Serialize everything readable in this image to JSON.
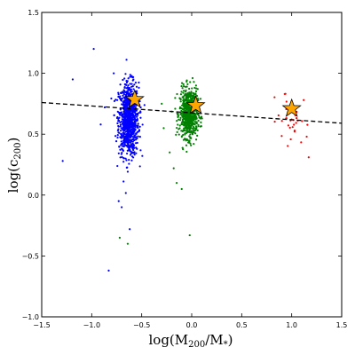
{
  "chart_data": {
    "type": "scatter",
    "xlabel": "log(M200/M*)",
    "xlabel_main": "log(M",
    "xlabel_sub1": "200",
    "xlabel_mid": "/M",
    "xlabel_sub2": "*",
    "xlabel_end": ")",
    "ylabel": "log(c200)",
    "ylabel_main": "log(c",
    "ylabel_sub": "200",
    "ylabel_end": ")",
    "xlim": [
      -1.5,
      1.5
    ],
    "ylim": [
      -1.0,
      1.5
    ],
    "xticks": [
      -1.5,
      -1.0,
      -0.5,
      0.0,
      0.5,
      1.0,
      1.5
    ],
    "yticks": [
      -1.0,
      -0.5,
      0.0,
      0.5,
      1.0,
      1.5
    ],
    "xtick_labels": [
      "−1.5",
      "−1.0",
      "−0.5",
      "0.0",
      "0.5",
      "1.0",
      "1.5"
    ],
    "ytick_labels": [
      "−1.0",
      "−0.5",
      "0.0",
      "0.5",
      "1.0",
      "1.5"
    ],
    "grid": false,
    "series": [
      {
        "color": "#0000ff",
        "cluster": {
          "x_center": -0.63,
          "x_spread": 0.05,
          "y_center": 0.62,
          "y_spread": 0.15,
          "count": 900
        },
        "outliers": [
          [
            -0.98,
            1.2
          ],
          [
            -1.19,
            0.95
          ],
          [
            -1.29,
            0.28
          ],
          [
            -0.83,
            -0.62
          ],
          [
            -0.73,
            -0.05
          ],
          [
            -0.62,
            -0.28
          ],
          [
            -0.91,
            0.58
          ],
          [
            -0.87,
            0.72
          ],
          [
            -0.78,
            1.0
          ],
          [
            -0.7,
            -0.1
          ]
        ]
      },
      {
        "color": "#008000",
        "cluster": {
          "x_center": -0.03,
          "x_spread": 0.045,
          "y_center": 0.67,
          "y_spread": 0.1,
          "count": 700
        },
        "outliers": [
          [
            -0.72,
            -0.35
          ],
          [
            -0.64,
            -0.4
          ],
          [
            -0.28,
            0.55
          ],
          [
            -0.22,
            0.35
          ],
          [
            -0.18,
            0.22
          ],
          [
            -0.1,
            0.05
          ],
          [
            -0.02,
            -0.33
          ],
          [
            -0.3,
            0.75
          ],
          [
            -0.15,
            0.1
          ]
        ]
      },
      {
        "color": "#ff0000",
        "cluster": {
          "x_center": 1.0,
          "x_spread": 0.07,
          "y_center": 0.62,
          "y_spread": 0.1,
          "count": 30
        },
        "outliers": [
          [
            1.17,
            0.31
          ],
          [
            0.93,
            0.83
          ],
          [
            1.12,
            0.78
          ],
          [
            1.15,
            0.48
          ]
        ]
      }
    ],
    "fit_line": {
      "x": [
        -1.5,
        1.5
      ],
      "y": [
        0.76,
        0.59
      ],
      "style": "dashed",
      "color": "#000000"
    },
    "stars": [
      {
        "x": -0.57,
        "y": 0.785,
        "color": "#ffa500"
      },
      {
        "x": 0.04,
        "y": 0.735,
        "color": "#ffa500"
      },
      {
        "x": 1.0,
        "y": 0.71,
        "color": "#ffa500"
      }
    ]
  }
}
